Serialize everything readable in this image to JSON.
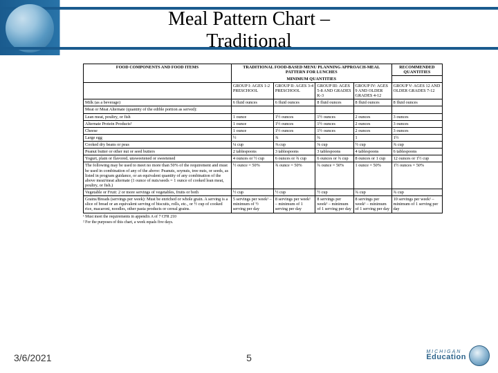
{
  "slide": {
    "title_line1": "Meal Pattern Chart –",
    "title_line2": "Traditional",
    "date": "3/6/2021",
    "page_number": "5"
  },
  "table": {
    "banner": "TRADITIONAL FOOD-BASED MENU PLANNING APPROACH-MEAL PATTERN FOR LUNCHES",
    "min_header": "MINIMUM QUANTITIES",
    "rec_header": "RECOMMENDED QUANTITIES",
    "col0": "FOOD COMPONENTS AND FOOD ITEMS",
    "col1": "GROUP I: AGES 1-2 PRESCHOOL",
    "col2": "GROUP II: AGES 3-4 PRESCHOOL",
    "col3": "GROUP III: AGES 5-8 AND GRADES K-3",
    "col4": "GROUP IV: AGES 9 AND OLDER GRADES 4-12",
    "col5": "GROUP V: AGES 12 AND OLDER GRADES 7-12",
    "rows": [
      {
        "label": "Milk (as a beverage)",
        "c1": "6 fluid ounces",
        "c2": "6 fluid ounces",
        "c3": "8 fluid ounces",
        "c4": "8 fluid ounces",
        "c5": "8 fluid ounces"
      },
      {
        "label": "Meat or Meat Alternate (quantity of the edible portion as served):",
        "c1": "",
        "c2": "",
        "c3": "",
        "c4": "",
        "c5": ""
      },
      {
        "label": "Lean meat, poultry, or fish",
        "c1": "1 ounce",
        "c2": "1½ ounces",
        "c3": "1½ ounces",
        "c4": "2 ounces",
        "c5": "3 ounces"
      },
      {
        "label": "Alternate Protein Products²",
        "c1": "1 ounce",
        "c2": "1½ ounces",
        "c3": "1½ ounces",
        "c4": "2 ounces",
        "c5": "3 ounces"
      },
      {
        "label": "Cheese",
        "c1": "1 ounce",
        "c2": "1½ ounces",
        "c3": "1½ ounces",
        "c4": "2 ounces",
        "c5": "3 ounces"
      },
      {
        "label": "Large egg",
        "c1": "½",
        "c2": "¾",
        "c3": "¾",
        "c4": "1",
        "c5": "1½"
      },
      {
        "label": "Cooked dry beans or peas",
        "c1": "¼ cup",
        "c2": "⅜ cup",
        "c3": "⅜ cup",
        "c4": "½ cup",
        "c5": "¾ cup"
      },
      {
        "label": "Peanut butter or other nut or seed butters",
        "c1": "2 tablespoons",
        "c2": "3 tablespoons",
        "c3": "3 tablespoons",
        "c4": "4 tablespoons",
        "c5": "6 tablespoons"
      },
      {
        "label": "Yogurt, plain or flavored, unsweetened or sweetened",
        "c1": "4 ounces or ½ cup",
        "c2": "6 ounces or ¾ cup",
        "c3": "6 ounces or ¾ cup",
        "c4": "8 ounces or 1 cup",
        "c5": "12 ounces or 1½ cup"
      },
      {
        "label": "The following may be used to meet no more than 50% of the requirement and must be used in combination of any of the above: Peanuts, soynuts, tree nuts, or seeds, as listed in program guidance, or an equivalent quantity of any combination of the above meat/meat alternate (1 ounce of nuts/seeds = 1 ounce of cooked lean meat, poultry, or fish.)",
        "c1": "½ ounce = 50%",
        "c2": "¾ ounce = 50%",
        "c3": "¾ ounce = 50%",
        "c4": "1 ounce = 50%",
        "c5": "1½ ounces = 50%"
      },
      {
        "label": "Vegetable or Fruit: 2 or more servings of vegetables, fruits or both",
        "c1": "½ cup",
        "c2": "½ cup",
        "c3": "½ cup",
        "c4": "¾ cup",
        "c5": "¾ cup"
      },
      {
        "label": "Grains/Breads (servings per week): Must be enriched or whole grain. A serving is a slice of bread or an equivalent serving of biscuits, rolls, etc., or ½ cup of cooked rice, macaroni, noodles, other pasta products or cereal grains.",
        "c1": "5 servings per week¹ – minimum of ½ serving per day",
        "c2": "8 servings per week¹ – minimum of 1 serving per day",
        "c3": "8 servings per week¹ – minimum of 1 serving per day",
        "c4": "8 servings per week¹ – minimum of 1 serving per day",
        "c5": "10 servings per week¹ – minimum of 1 serving per day"
      }
    ],
    "footnote1": "¹ Must meet the requirements in appendix A of 7 CFR 210",
    "footnote2": "² For the purposes of this chart, a week equals five days."
  },
  "logo": {
    "line1": "MICHIGAN",
    "line2": "Education"
  },
  "colors": {
    "band": "#1a5b8e"
  }
}
